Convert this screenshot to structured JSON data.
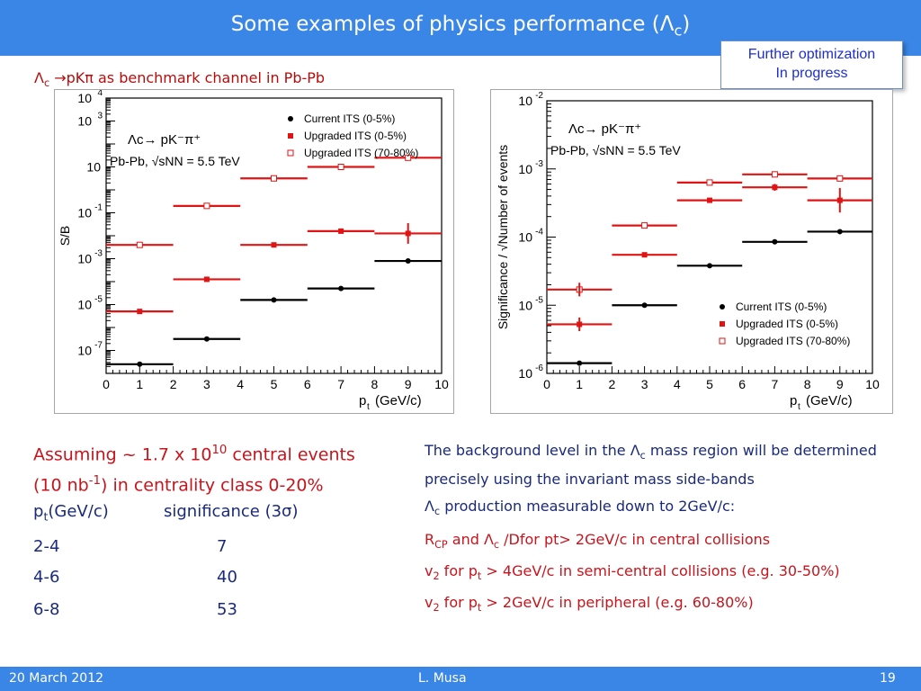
{
  "slide": {
    "title_main": "Some examples of physics performance (",
    "title_symbol": "Λ",
    "title_sub": "c",
    "title_end": ")",
    "note_line1": "Further optimization",
    "note_line2": "In progress",
    "subhead_symbol": "Λ",
    "subhead_sub": "c",
    "subhead_arrow": "→",
    "subhead_rest": "pKπ as benchmark channel in Pb-Pb"
  },
  "assume": {
    "line1_pre": "Assuming ~ 1.7 x 10",
    "line1_sup": "10",
    "line1_post": " central events",
    "line2_pre": "(10 nb",
    "line2_sup": "-1",
    "line2_post": ") in centrality class 0-20%"
  },
  "table": {
    "col1_p": "p",
    "col1_sub": "t",
    "col1_rest": "(GeV/c)",
    "col2": "significance (3σ)",
    "rows": [
      {
        "pt": "2-4",
        "sig": "7"
      },
      {
        "pt": "4-6",
        "sig": "40"
      },
      {
        "pt": "6-8",
        "sig": "53"
      }
    ]
  },
  "right_text": {
    "bg_line": "The background level in the Λc mass region will be determined precisely using the invariant mass side-bands",
    "bg_pre": "The background level in the ",
    "bg_sym": "Λ",
    "bg_sub": "c",
    "bg_post": " mass region will be determined precisely using the invariant mass side-bands",
    "meas_sym": "Λ",
    "meas_sub": "c",
    "meas_post": "  production measurable down to 2GeV/c:",
    "rcp_R": "R",
    "rcp_sub": "CP",
    "rcp_and": " and ",
    "rcp_sym": "Λ",
    "rcp_sym_sub": "c",
    "rcp_post": " /Dfor pt> 2GeV/c in central collisions",
    "v2a_v": "v",
    "v2a_sub": "2",
    "v2a_mid": " for p",
    "v2a_psub": "t",
    "v2a_post": " > 4GeV/c in semi-central collisions (e.g. 30-50%)",
    "v2b_v": "v",
    "v2b_sub": "2",
    "v2b_mid": " for p",
    "v2b_psub": "t",
    "v2b_post": " > 2GeV/c in peripheral (e.g. 60-80%)"
  },
  "footer": {
    "date": "20 March 2012",
    "author": "L. Musa",
    "page": "19"
  },
  "colors": {
    "header": "#3a86e6",
    "red": "#e01414",
    "black": "#000000",
    "text_blue": "#1a2a7a",
    "note_blue": "#1d2fcf"
  },
  "chart_data": [
    {
      "type": "scatter",
      "title": "",
      "xlabel": "p_t (GeV/c)",
      "ylabel": "S/B",
      "xlim": [
        0,
        10
      ],
      "ylim_log10": [
        -8,
        4
      ],
      "yscale": "log",
      "x_ticks": [
        "0",
        "1",
        "2",
        "3",
        "4",
        "5",
        "6",
        "7",
        "8",
        "9",
        "10"
      ],
      "y_tick_labels": [
        {
          "exp": 4,
          "base": "10",
          "sup": "4"
        },
        {
          "exp": 3,
          "base": "10",
          "sup": "3"
        },
        {
          "exp": 1,
          "base": "10",
          "sup": ""
        },
        {
          "exp": -1,
          "base": "10",
          "sup": "-1"
        },
        {
          "exp": -3,
          "base": "10",
          "sup": "-3"
        },
        {
          "exp": -5,
          "base": "10",
          "sup": "-5"
        },
        {
          "exp": -7,
          "base": "10",
          "sup": "-7"
        }
      ],
      "annotation_decay": "Λc→ pK⁻π⁺",
      "annotation_system": "Pb-Pb, √sNN = 5.5 TeV",
      "legend": [
        {
          "label": "Current ITS (0-5%)",
          "marker": "filled-circle",
          "color": "#000000"
        },
        {
          "label": "Upgraded ITS (0-5%)",
          "marker": "filled-square",
          "color": "#e01414"
        },
        {
          "label": "Upgraded ITS (70-80%)",
          "marker": "open-square",
          "color": "#e01414"
        }
      ],
      "legend_position": "top-right",
      "bins": [
        [
          0,
          2
        ],
        [
          2,
          4
        ],
        [
          4,
          6
        ],
        [
          6,
          8
        ],
        [
          8,
          10
        ]
      ],
      "series": [
        {
          "name": "Current ITS (0-5%)",
          "color": "#000000",
          "marker": "filled-circle",
          "points": [
            [
              1,
              -7.6
            ],
            [
              3,
              -6.5
            ],
            [
              5,
              -4.8
            ],
            [
              7,
              -4.3
            ],
            [
              9,
              -3.1
            ]
          ]
        },
        {
          "name": "Upgraded ITS (0-5%)",
          "color": "#e01414",
          "marker": "filled-square",
          "points": [
            [
              1,
              -5.3
            ],
            [
              3,
              -3.9
            ],
            [
              5,
              -2.4
            ],
            [
              7,
              -1.8
            ],
            [
              9,
              -1.9
            ]
          ]
        },
        {
          "name": "Upgraded ITS (70-80%)",
          "color": "#e01414",
          "marker": "open-square",
          "points": [
            [
              1,
              -2.4
            ],
            [
              3,
              -0.7
            ],
            [
              5,
              0.5
            ],
            [
              7,
              1.0
            ],
            [
              9,
              1.4
            ]
          ]
        }
      ],
      "error_bars": [
        {
          "series": 1,
          "point": 4,
          "log10_err": 0.45
        }
      ]
    },
    {
      "type": "scatter",
      "title": "",
      "xlabel": "p_t (GeV/c)",
      "ylabel": "Significance / √Number of events",
      "xlim": [
        0,
        10
      ],
      "ylim_log10": [
        -6,
        -2
      ],
      "yscale": "log",
      "x_ticks": [
        "0",
        "1",
        "2",
        "3",
        "4",
        "5",
        "6",
        "7",
        "8",
        "9",
        "10"
      ],
      "y_tick_labels": [
        {
          "exp": -2,
          "base": "10",
          "sup": "-2"
        },
        {
          "exp": -3,
          "base": "10",
          "sup": "-3"
        },
        {
          "exp": -4,
          "base": "10",
          "sup": "-4"
        },
        {
          "exp": -5,
          "base": "10",
          "sup": "-5"
        },
        {
          "exp": -6,
          "base": "10",
          "sup": "-6"
        }
      ],
      "annotation_decay": "Λc→ pK⁻π⁺",
      "annotation_system": "Pb-Pb, √sNN = 5.5 TeV",
      "legend": [
        {
          "label": "Current ITS (0-5%)",
          "marker": "filled-circle",
          "color": "#000000"
        },
        {
          "label": "Upgraded ITS (0-5%)",
          "marker": "filled-square",
          "color": "#e01414"
        },
        {
          "label": "Upgraded ITS (70-80%)",
          "marker": "open-square",
          "color": "#e01414"
        }
      ],
      "legend_position": "bottom-right",
      "bins": [
        [
          0,
          2
        ],
        [
          2,
          4
        ],
        [
          4,
          6
        ],
        [
          6,
          8
        ],
        [
          8,
          10
        ]
      ],
      "series": [
        {
          "name": "Current ITS (0-5%)",
          "color": "#000000",
          "marker": "filled-circle",
          "points": [
            [
              1,
              -5.85
            ],
            [
              3,
              -5.0
            ],
            [
              5,
              -4.42
            ],
            [
              7,
              -4.07
            ],
            [
              9,
              -3.92
            ]
          ]
        },
        {
          "name": "Upgraded ITS (0-5%)",
          "color": "#e01414",
          "marker": "filled-square",
          "points": [
            [
              1,
              -5.28
            ],
            [
              3,
              -4.26
            ],
            [
              5,
              -3.46
            ],
            [
              7,
              -3.27
            ],
            [
              9,
              -3.46
            ]
          ]
        },
        {
          "name": "Upgraded ITS (70-80%)",
          "color": "#e01414",
          "marker": "open-square",
          "points": [
            [
              1,
              -4.77
            ],
            [
              3,
              -3.83
            ],
            [
              5,
              -3.2
            ],
            [
              7,
              -3.08
            ],
            [
              9,
              -3.14
            ]
          ]
        }
      ],
      "error_bars": [
        {
          "series": 1,
          "point": 0,
          "log10_err": 0.1
        },
        {
          "series": 2,
          "point": 0,
          "log10_err": 0.1
        },
        {
          "series": 1,
          "point": 4,
          "log10_err": 0.18
        },
        {
          "series": 1,
          "point": 3,
          "log10_err": 0.05
        }
      ]
    }
  ]
}
